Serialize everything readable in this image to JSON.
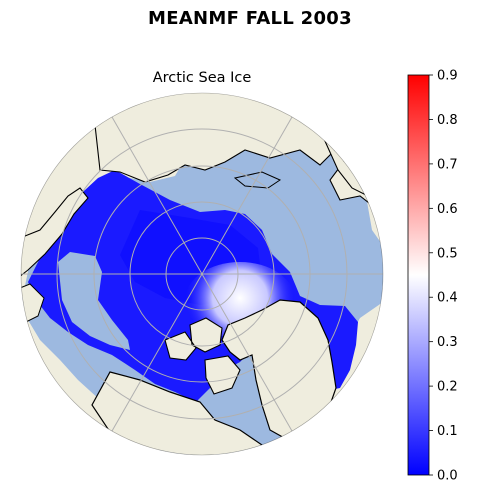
{
  "figure": {
    "suptitle": "MEANMF FALL 2003",
    "map_title": "Arctic Sea Ice"
  },
  "map": {
    "projection": "north-polar-stereographic",
    "land_color": "#efedde",
    "ocean_color": "#9db9e0",
    "coastline_color": "#000000",
    "gridline_color": "#b0b0b0"
  },
  "colorbar": {
    "cmap": "bwr",
    "min": 0.0,
    "max": 0.9,
    "tick_labels": [
      "0.0",
      "0.1",
      "0.2",
      "0.3",
      "0.4",
      "0.5",
      "0.6",
      "0.7",
      "0.8",
      "0.9"
    ],
    "colors": {
      "low": "#0000ff",
      "mid": "#ffffff",
      "high": "#ff0000"
    }
  }
}
